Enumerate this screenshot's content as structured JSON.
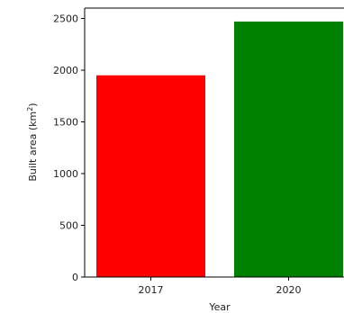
{
  "chart_data": {
    "type": "bar",
    "categories": [
      "2017",
      "2020"
    ],
    "values": [
      1950,
      2470
    ],
    "colors": [
      "#ff0000",
      "#008000"
    ],
    "title": "",
    "xlabel": "Year",
    "ylabel": "Built area (km",
    "ylabel_sup": "2",
    "ylabel_close": ")",
    "ylim": [
      0,
      2600
    ],
    "yticks": [
      0,
      500,
      1000,
      1500,
      2000,
      2500
    ],
    "ytick_labels": [
      "0",
      "500",
      "1000",
      "1500",
      "2000",
      "2500"
    ],
    "grid": false
  }
}
